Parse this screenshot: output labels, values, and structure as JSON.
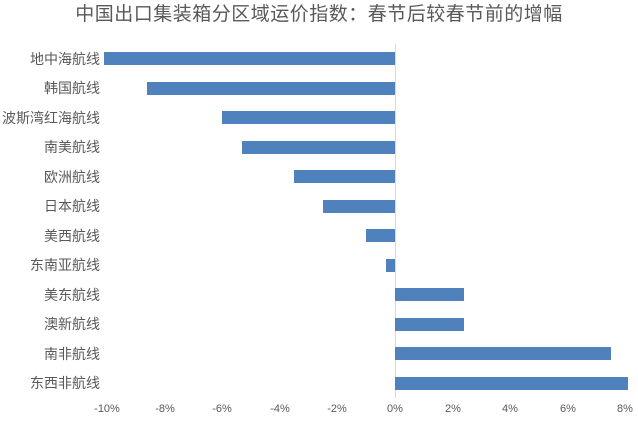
{
  "chart_data": {
    "type": "bar",
    "orientation": "horizontal",
    "title": "中国出口集装箱分区域运价指数：春节后较春节前的增幅",
    "categories": [
      "地中海航线",
      "韩国航线",
      "波斯湾红海航线",
      "南美航线",
      "欧洲航线",
      "日本航线",
      "美西航线",
      "东南亚航线",
      "美东航线",
      "澳新航线",
      "南非航线",
      "东西非航线"
    ],
    "values": [
      -10.1,
      -8.6,
      -6.0,
      -5.3,
      -3.5,
      -2.5,
      -1.0,
      -0.3,
      2.4,
      2.4,
      7.5,
      8.1
    ],
    "unit": "%",
    "xlabel": "",
    "ylabel": "",
    "xlim": [
      -10.4,
      8.4
    ],
    "x_ticks": [
      -10,
      -8,
      -6,
      -4,
      -2,
      0,
      2,
      4,
      6,
      8
    ],
    "x_tick_labels": [
      "-10%",
      "-8%",
      "-6%",
      "-4%",
      "-2%",
      "0%",
      "2%",
      "4%",
      "6%",
      "8%"
    ],
    "gridlines": "vertical zero line only",
    "legend": "none",
    "colors": {
      "bar": "#4F81BD",
      "title": "#595959",
      "category_labels": "#595959",
      "tick_labels": "#595959",
      "zero_line": "#D9D9D9",
      "background": "#FFFFFF"
    }
  }
}
